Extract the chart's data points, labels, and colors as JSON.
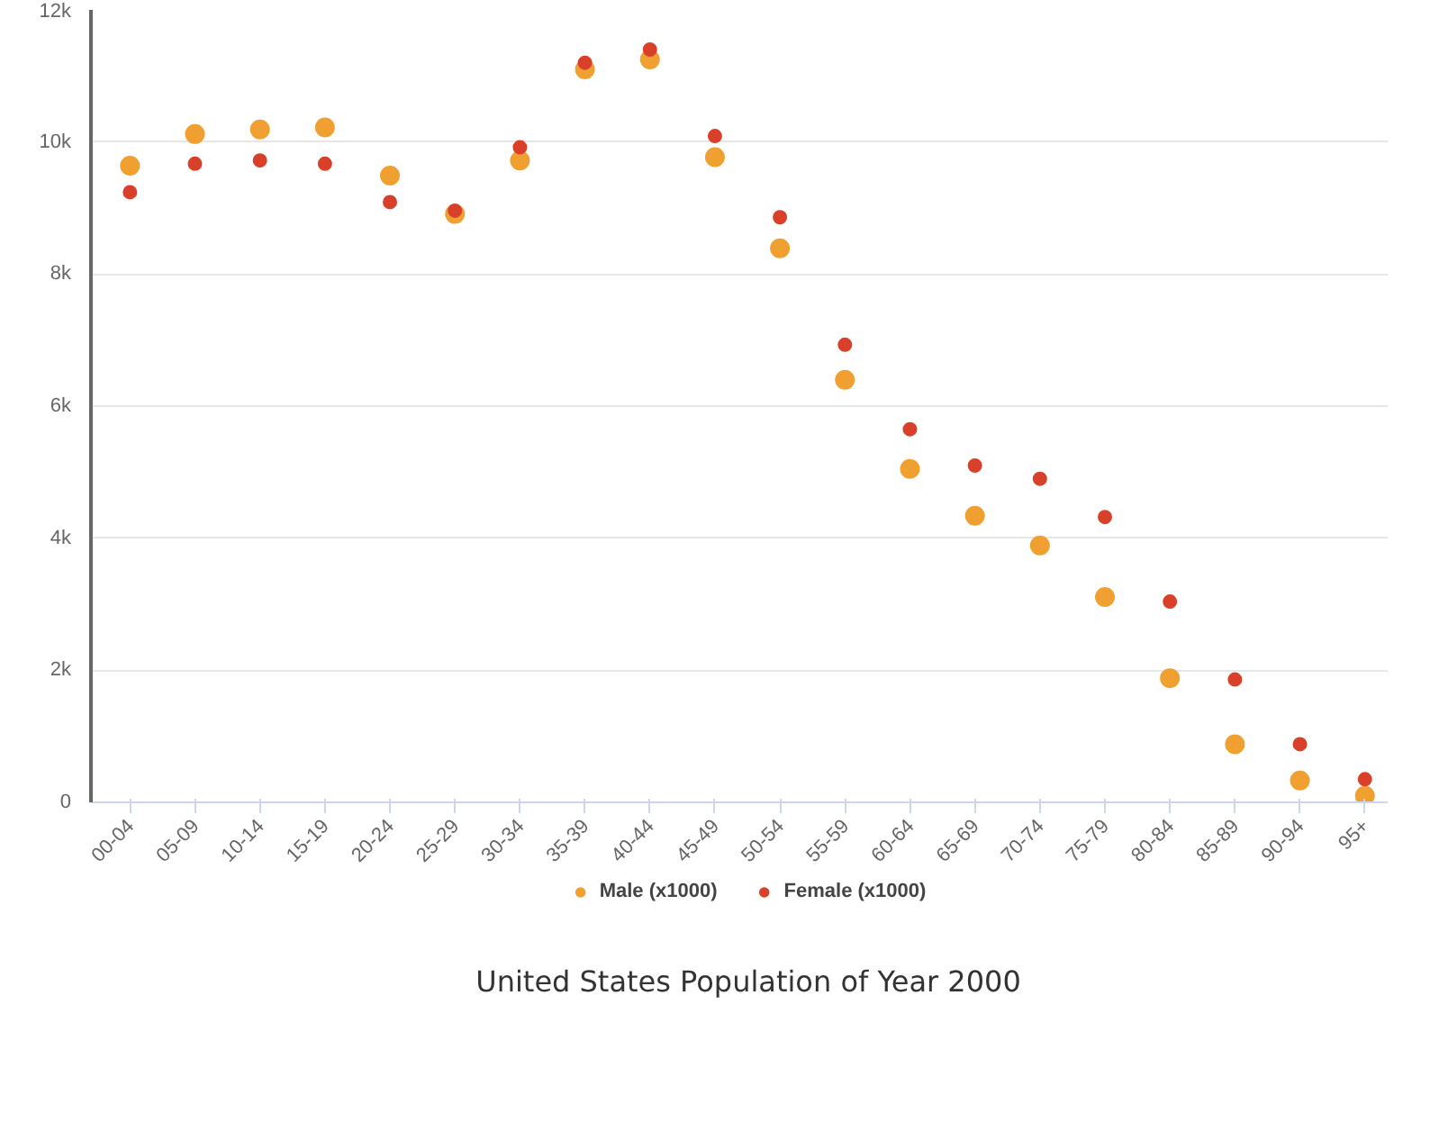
{
  "chart_data": {
    "type": "scatter",
    "title": "United States Population of Year 2000",
    "categories": [
      "00-04",
      "05-09",
      "10-14",
      "15-19",
      "20-24",
      "25-29",
      "30-34",
      "35-39",
      "40-44",
      "45-49",
      "50-54",
      "55-59",
      "60-64",
      "65-69",
      "70-74",
      "75-79",
      "80-84",
      "85-89",
      "90-94",
      "95+"
    ],
    "series": [
      {
        "name": "Male (x1000)",
        "color": "#f0a030",
        "values": [
          9.64,
          10.12,
          10.19,
          10.22,
          9.49,
          8.91,
          9.72,
          11.1,
          11.25,
          9.77,
          8.39,
          6.4,
          5.05,
          4.34,
          3.89,
          3.11,
          1.88,
          0.88,
          0.33,
          0.1
        ]
      },
      {
        "name": "Female (x1000)",
        "color": "#d9402a",
        "values": [
          9.24,
          9.67,
          9.72,
          9.67,
          9.09,
          8.96,
          9.92,
          11.2,
          11.4,
          10.09,
          8.86,
          6.93,
          5.65,
          5.1,
          4.9,
          4.32,
          3.04,
          1.86,
          0.88,
          0.35
        ]
      }
    ],
    "ylim": [
      0,
      12
    ],
    "yticks": [
      {
        "value": 0,
        "label": "0"
      },
      {
        "value": 2,
        "label": "2k"
      },
      {
        "value": 4,
        "label": "4k"
      },
      {
        "value": 6,
        "label": "6k"
      },
      {
        "value": 8,
        "label": "8k"
      },
      {
        "value": 10,
        "label": "10k"
      },
      {
        "value": 12,
        "label": "12k"
      }
    ],
    "grid": "y",
    "legend": "bottom",
    "marker": "circle"
  }
}
